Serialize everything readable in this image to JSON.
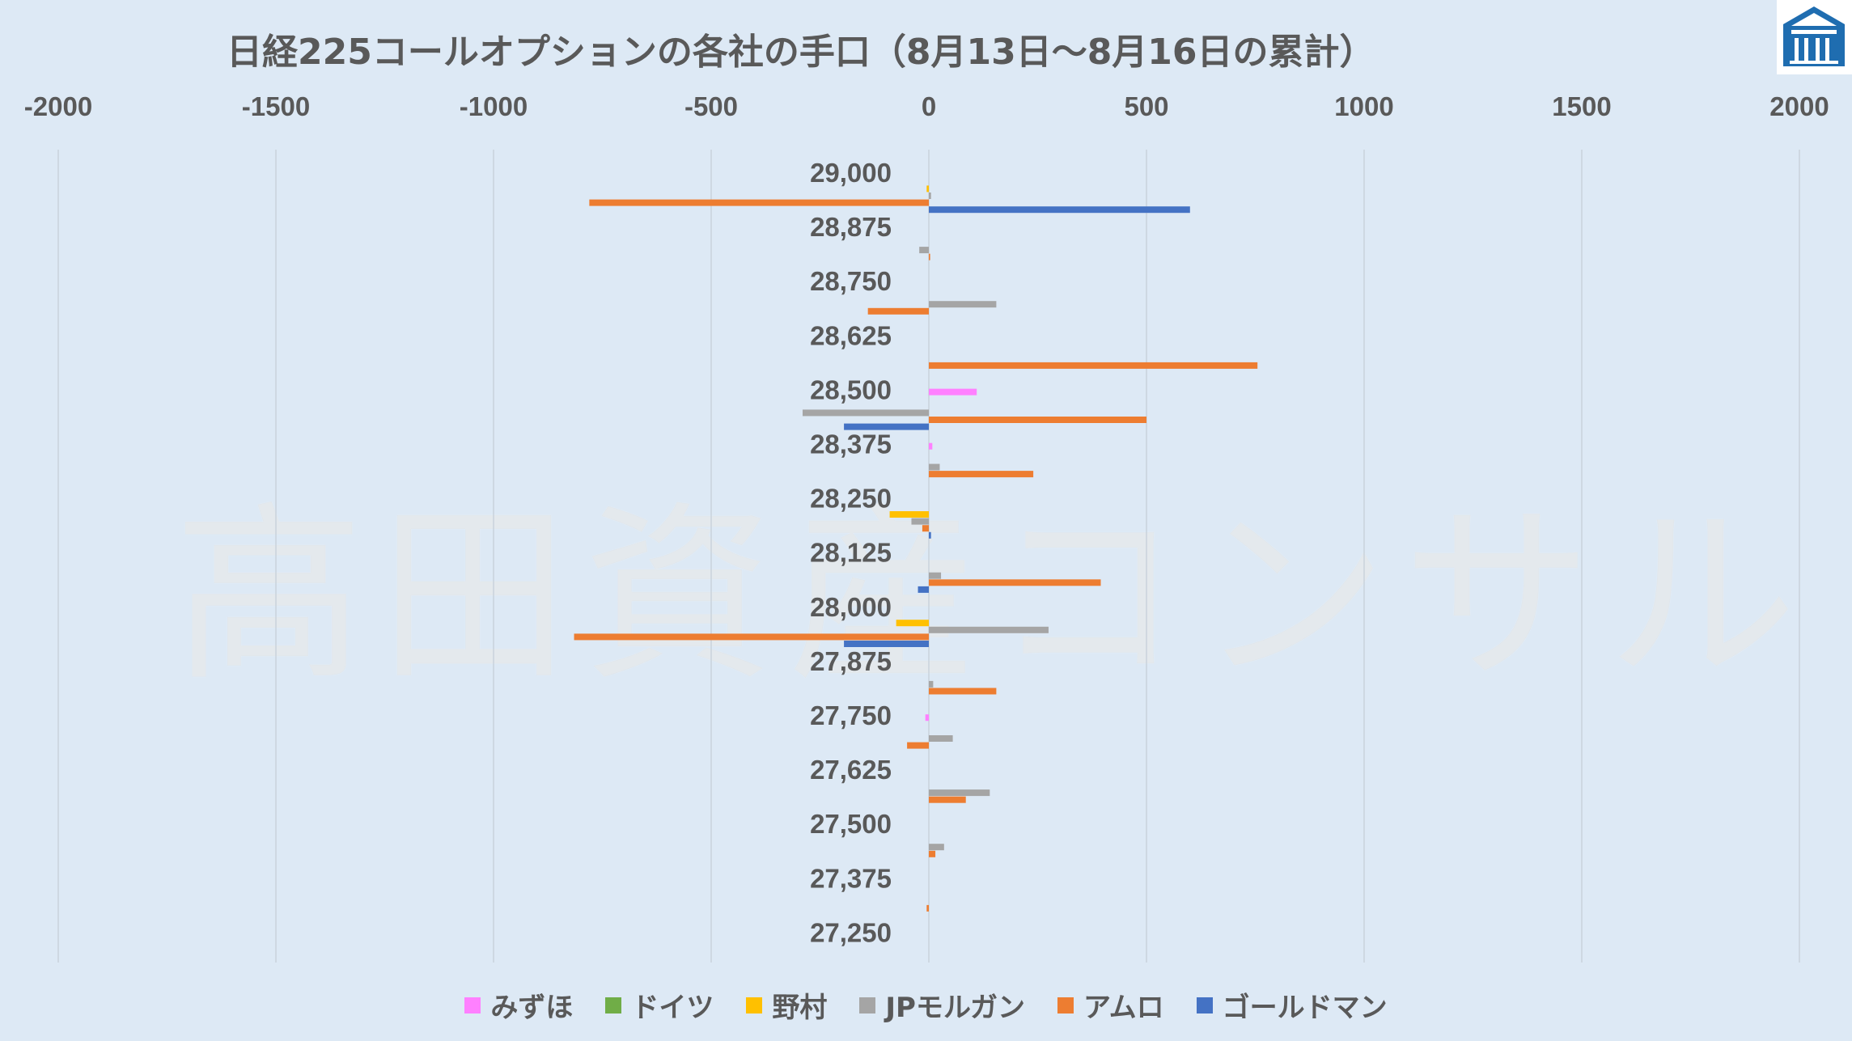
{
  "title": "日経225コールオプションの各社の手口（8月13日～8月16日の累計）",
  "watermark": "高田資産コンサル",
  "logo": {
    "icon": "company-logo-icon",
    "color": "#1f6db0"
  },
  "colors": {
    "background": "#dde9f5",
    "gridline": "#c9d3dc",
    "axis_text": "#595959"
  },
  "chart_data": {
    "type": "bar",
    "orientation": "horizontal",
    "title": "日経225コールオプションの各社の手口（8月13日～8月16日の累計）",
    "xlim": [
      -2000,
      2000
    ],
    "x_ticks": [
      "-2000",
      "-1500",
      "-1000",
      "-500",
      "0",
      "500",
      "1000",
      "1500",
      "2000"
    ],
    "x_tick_values": [
      -2000,
      -1500,
      -1000,
      -500,
      0,
      500,
      1000,
      1500,
      2000
    ],
    "grid": true,
    "legend_position": "bottom",
    "categories": [
      "29,000",
      "28,875",
      "28,750",
      "28,625",
      "28,500",
      "28,375",
      "28,250",
      "28,125",
      "28,000",
      "27,875",
      "27,750",
      "27,625",
      "27,500",
      "27,375",
      "27,250"
    ],
    "series": [
      {
        "name": "みずほ",
        "color": "#ff80ff",
        "values": [
          0,
          0,
          0,
          0,
          110,
          8,
          0,
          0,
          0,
          0,
          -8,
          0,
          0,
          0,
          0
        ]
      },
      {
        "name": "ドイツ",
        "color": "#70ad47",
        "values": [
          0,
          0,
          0,
          0,
          0,
          0,
          0,
          0,
          0,
          0,
          0,
          0,
          0,
          0,
          0
        ]
      },
      {
        "name": "野村",
        "color": "#ffc000",
        "values": [
          -5,
          0,
          0,
          0,
          0,
          0,
          -90,
          0,
          -75,
          0,
          0,
          0,
          0,
          0,
          0
        ]
      },
      {
        "name": "JPモルガン",
        "color": "#a5a5a5",
        "values": [
          5,
          -22,
          155,
          0,
          -290,
          25,
          -40,
          28,
          275,
          10,
          55,
          140,
          35,
          0,
          0
        ]
      },
      {
        "name": "アムロ",
        "color": "#ed7d31",
        "values": [
          -780,
          3,
          -140,
          755,
          500,
          240,
          -15,
          395,
          -815,
          155,
          -50,
          85,
          15,
          -5,
          0
        ]
      },
      {
        "name": "ゴールドマン",
        "color": "#4472c4",
        "values": [
          600,
          0,
          0,
          0,
          -195,
          0,
          5,
          -25,
          -195,
          0,
          0,
          0,
          0,
          0,
          0
        ]
      }
    ]
  }
}
